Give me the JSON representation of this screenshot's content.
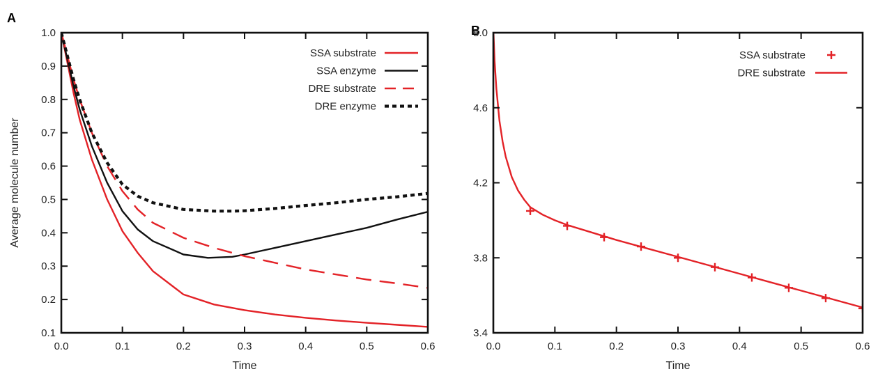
{
  "chart_data": [
    {
      "panel": "A",
      "type": "line",
      "xlabel": "Time",
      "ylabel": "Average molecule number",
      "xlim": [
        0,
        0.6
      ],
      "ylim": [
        0.1,
        1.0
      ],
      "xticks": [
        "0.0",
        "0.1",
        "0.2",
        "0.3",
        "0.4",
        "0.5",
        "0.6"
      ],
      "yticks": [
        "0.1",
        "0.2",
        "0.3",
        "0.4",
        "0.5",
        "0.6",
        "0.7",
        "0.8",
        "0.9",
        "1.0"
      ],
      "legend_position": "top-right",
      "series": [
        {
          "name": "SSA substrate",
          "color": "#e32227",
          "style": "solid",
          "x": [
            0,
            0.01,
            0.02,
            0.03,
            0.05,
            0.075,
            0.1,
            0.125,
            0.15,
            0.2,
            0.25,
            0.3,
            0.35,
            0.4,
            0.45,
            0.5,
            0.55,
            0.6
          ],
          "y": [
            1.0,
            0.91,
            0.82,
            0.74,
            0.62,
            0.5,
            0.405,
            0.34,
            0.285,
            0.215,
            0.185,
            0.168,
            0.155,
            0.145,
            0.137,
            0.13,
            0.124,
            0.118
          ]
        },
        {
          "name": "SSA enzyme",
          "color": "#111111",
          "style": "solid",
          "x": [
            0,
            0.01,
            0.02,
            0.03,
            0.05,
            0.075,
            0.1,
            0.125,
            0.15,
            0.2,
            0.24,
            0.28,
            0.3,
            0.35,
            0.4,
            0.45,
            0.5,
            0.55,
            0.6
          ],
          "y": [
            1.0,
            0.92,
            0.84,
            0.77,
            0.66,
            0.55,
            0.465,
            0.41,
            0.375,
            0.335,
            0.325,
            0.328,
            0.335,
            0.355,
            0.375,
            0.395,
            0.415,
            0.44,
            0.463
          ]
        },
        {
          "name": "DRE substrate",
          "color": "#e32227",
          "style": "dashed",
          "x": [
            0,
            0.01,
            0.02,
            0.03,
            0.05,
            0.075,
            0.1,
            0.125,
            0.15,
            0.2,
            0.25,
            0.3,
            0.35,
            0.4,
            0.45,
            0.5,
            0.55,
            0.6
          ],
          "y": [
            1.0,
            0.93,
            0.86,
            0.8,
            0.7,
            0.6,
            0.525,
            0.47,
            0.43,
            0.385,
            0.355,
            0.33,
            0.31,
            0.29,
            0.275,
            0.26,
            0.248,
            0.235
          ]
        },
        {
          "name": "DRE enzyme",
          "color": "#111111",
          "style": "dotted",
          "x": [
            0,
            0.01,
            0.02,
            0.03,
            0.05,
            0.075,
            0.1,
            0.125,
            0.15,
            0.2,
            0.25,
            0.28,
            0.3,
            0.35,
            0.4,
            0.45,
            0.5,
            0.55,
            0.6
          ],
          "y": [
            1.0,
            0.93,
            0.86,
            0.8,
            0.7,
            0.61,
            0.545,
            0.51,
            0.49,
            0.47,
            0.465,
            0.465,
            0.466,
            0.473,
            0.482,
            0.49,
            0.5,
            0.508,
            0.518
          ]
        }
      ]
    },
    {
      "panel": "B",
      "type": "line",
      "xlabel": "Time",
      "ylabel": "",
      "xlim": [
        0,
        0.6
      ],
      "ylim": [
        3.4,
        5.0
      ],
      "xticks": [
        "0.0",
        "0.1",
        "0.2",
        "0.3",
        "0.4",
        "0.5",
        "0.6"
      ],
      "yticks": [
        "3.4",
        "3.8",
        "4.2",
        "4.6",
        "5.0"
      ],
      "legend_position": "top-right",
      "series": [
        {
          "name": "SSA substrate",
          "color": "#e32227",
          "style": "markers-plus",
          "x": [
            0.06,
            0.12,
            0.18,
            0.24,
            0.3,
            0.36,
            0.42,
            0.48,
            0.54,
            0.6
          ],
          "y": [
            4.05,
            3.97,
            3.91,
            3.86,
            3.8,
            3.75,
            3.695,
            3.64,
            3.585,
            3.53
          ]
        },
        {
          "name": "DRE substrate",
          "color": "#e32227",
          "style": "solid",
          "x": [
            0,
            0.002,
            0.005,
            0.01,
            0.015,
            0.02,
            0.03,
            0.04,
            0.05,
            0.06,
            0.08,
            0.1,
            0.12,
            0.15,
            0.2,
            0.25,
            0.3,
            0.35,
            0.4,
            0.45,
            0.5,
            0.55,
            0.6
          ],
          "y": [
            5.02,
            4.85,
            4.7,
            4.53,
            4.42,
            4.34,
            4.23,
            4.16,
            4.11,
            4.07,
            4.03,
            4.0,
            3.975,
            3.945,
            3.895,
            3.85,
            3.805,
            3.76,
            3.715,
            3.67,
            3.625,
            3.58,
            3.535
          ]
        }
      ]
    }
  ]
}
